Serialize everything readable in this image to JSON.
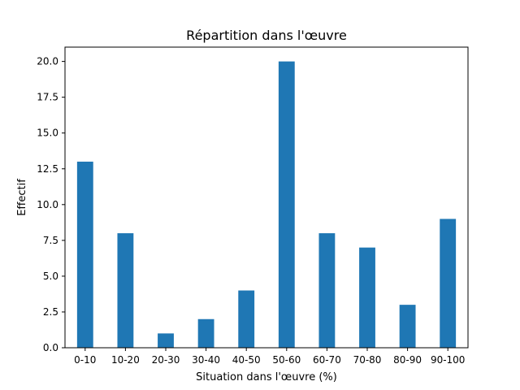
{
  "chart_data": {
    "type": "bar",
    "title": "Répartition dans l'œuvre",
    "xlabel": "Situation dans l'œuvre (%)",
    "ylabel": "Effectif",
    "categories": [
      "0-10",
      "10-20",
      "20-30",
      "30-40",
      "40-50",
      "50-60",
      "60-70",
      "70-80",
      "80-90",
      "90-100"
    ],
    "values": [
      13,
      8,
      1,
      2,
      4,
      20,
      8,
      7,
      3,
      9
    ],
    "ylim": [
      0,
      21
    ],
    "yticks": [
      "0.0",
      "2.5",
      "5.0",
      "7.5",
      "10.0",
      "12.5",
      "15.0",
      "17.5",
      "20.0"
    ],
    "bar_color": "#1f77b4",
    "grid": false
  }
}
